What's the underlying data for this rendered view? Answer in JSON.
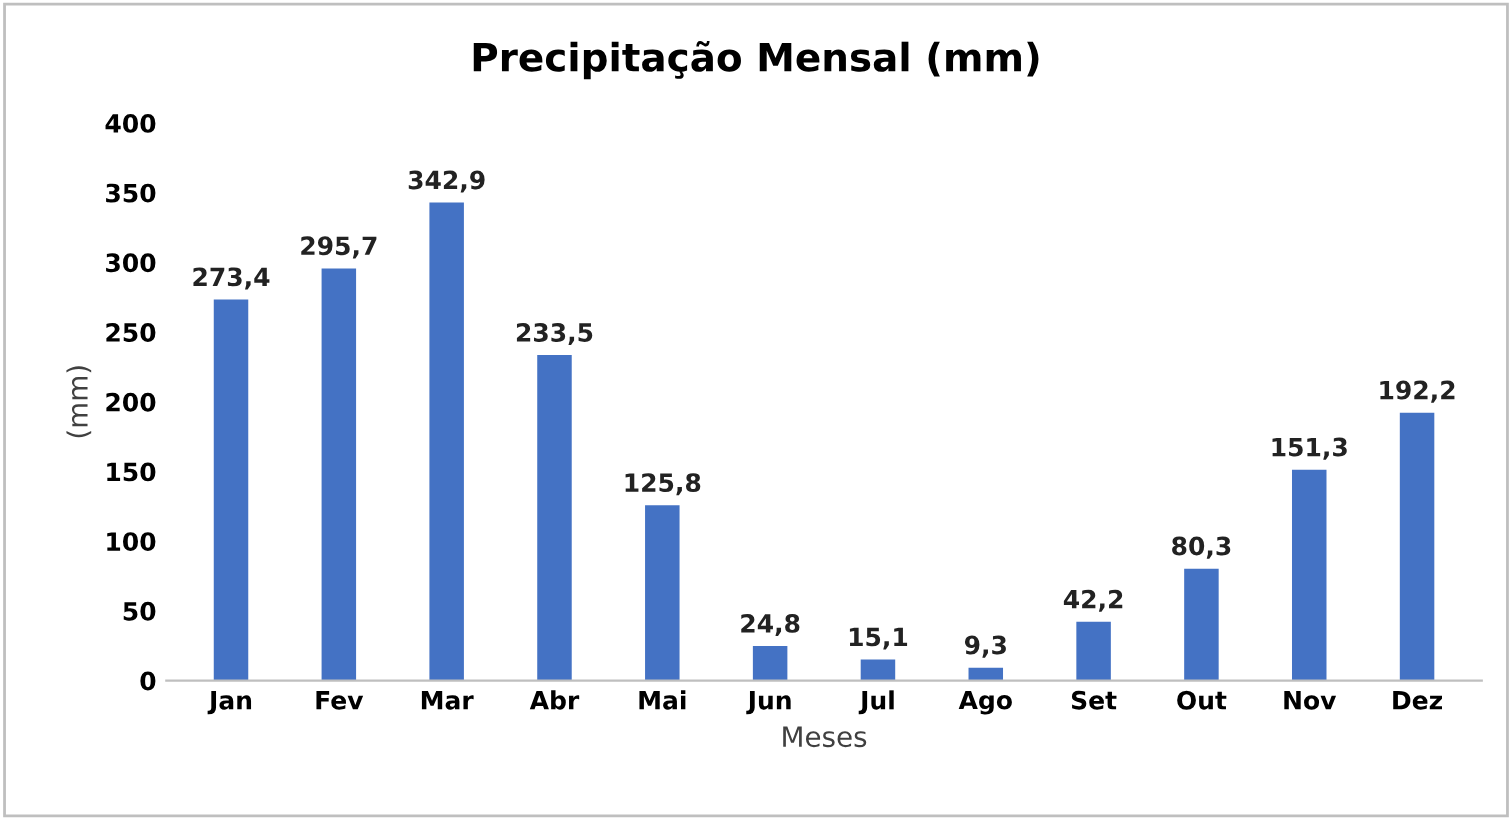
{
  "chart_data": {
    "type": "bar",
    "title": "Precipitação Mensal (mm)",
    "xlabel": "Meses",
    "ylabel": "(mm)",
    "categories": [
      "Jan",
      "Fev",
      "Mar",
      "Abr",
      "Mai",
      "Jun",
      "Jul",
      "Ago",
      "Set",
      "Out",
      "Nov",
      "Dez"
    ],
    "values": [
      273.4,
      295.7,
      342.9,
      233.5,
      125.8,
      24.8,
      15.1,
      9.3,
      42.2,
      80.3,
      151.3,
      192.2
    ],
    "value_labels": [
      "273,4",
      "295,7",
      "342,9",
      "233,5",
      "125,8",
      "24,8",
      "15,1",
      "9,3",
      "42,2",
      "80,3",
      "151,3",
      "192,2"
    ],
    "color": "#4472c4",
    "ylim": [
      0,
      400
    ],
    "yticks": [
      0,
      50,
      100,
      150,
      200,
      250,
      300,
      350,
      400
    ],
    "grid": false,
    "legend": false
  }
}
